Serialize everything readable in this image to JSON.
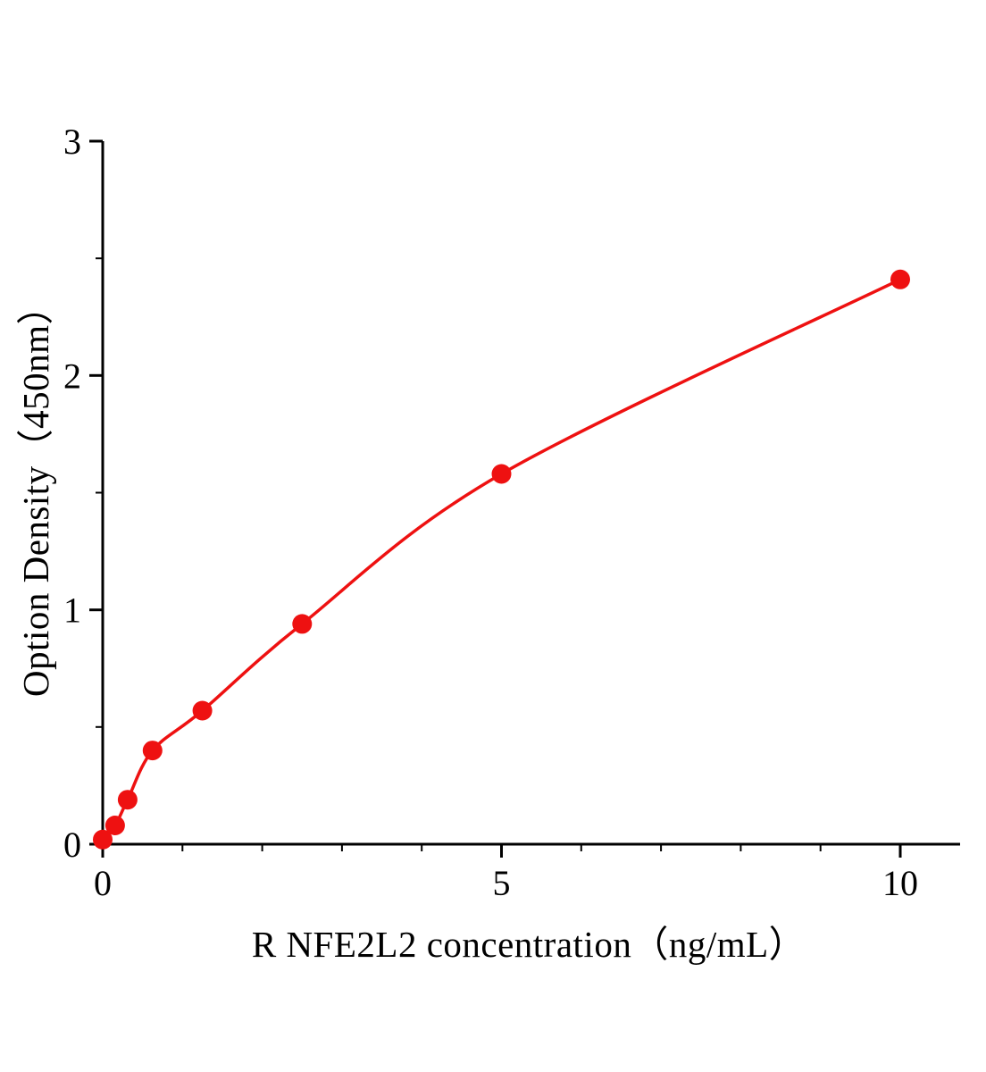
{
  "chart_data": {
    "type": "line",
    "title": "",
    "xlabel": "R NFE2L2 concentration（ng/mL）",
    "ylabel": "Option Density（450nm）",
    "points": {
      "x": [
        0,
        0.156,
        0.3125,
        0.625,
        1.25,
        2.5,
        5,
        10
      ],
      "y": [
        0.02,
        0.08,
        0.19,
        0.4,
        0.57,
        0.94,
        1.58,
        2.41
      ]
    },
    "xlim": [
      0,
      10.75
    ],
    "ylim": [
      0,
      3
    ],
    "x_ticks": {
      "major": [
        0,
        5,
        10
      ],
      "labels": [
        "0",
        "5",
        "10"
      ],
      "minor": [
        1,
        2,
        3,
        4,
        6,
        7,
        8,
        9
      ]
    },
    "y_ticks": {
      "major": [
        0,
        1,
        2,
        3
      ],
      "labels": [
        "0",
        "1",
        "2",
        "3"
      ],
      "minor": [
        0.5,
        1.5,
        2.5
      ]
    },
    "grid": false,
    "legend": "none",
    "colors": {
      "curve": "#ee1111",
      "marker": "#ee1111",
      "axis": "#000000",
      "background": "#ffffff"
    },
    "marker_radius": 11,
    "line_width": 3.5,
    "tick_font_size": 40
  }
}
